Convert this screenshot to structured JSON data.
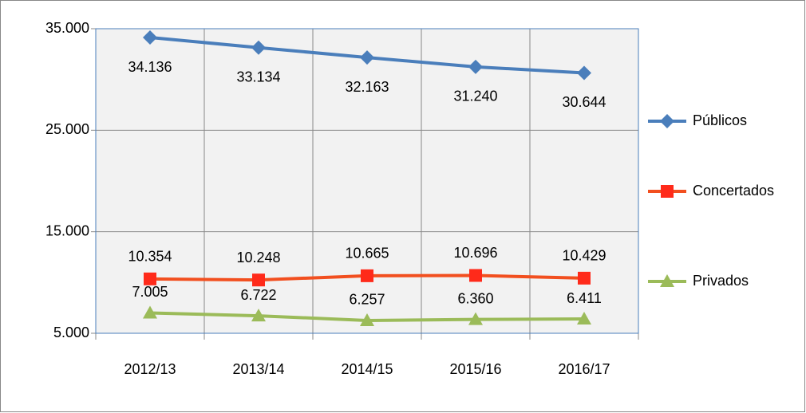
{
  "chart_data": {
    "type": "line",
    "categories": [
      "2012/13",
      "2013/14",
      "2014/15",
      "2015/16",
      "2016/17"
    ],
    "series": [
      {
        "name": "Públicos",
        "color": "#4a7ebb",
        "marker": "diamond",
        "values": [
          34136,
          33134,
          32163,
          31240,
          30644
        ],
        "value_labels": [
          "34.136",
          "33.134",
          "32.163",
          "31.240",
          "30.644"
        ]
      },
      {
        "name": "Concertados",
        "color": "#f24f1f",
        "marker": "square",
        "values": [
          10354,
          10248,
          10665,
          10696,
          10429
        ],
        "value_labels": [
          "10.354",
          "10.248",
          "10.665",
          "10.696",
          "10.429"
        ]
      },
      {
        "name": "Privados",
        "color": "#9bbb59",
        "marker": "triangle",
        "values": [
          7005,
          6722,
          6257,
          6360,
          6411
        ],
        "value_labels": [
          "7.005",
          "6.722",
          "6.257",
          "6.360",
          "6.411"
        ]
      }
    ],
    "ylim": [
      5000,
      35000
    ],
    "yticks": [
      {
        "value": 5000,
        "label": "5.000"
      },
      {
        "value": 15000,
        "label": "15.000"
      },
      {
        "value": 25000,
        "label": "25.000"
      },
      {
        "value": 35000,
        "label": "35.000"
      }
    ],
    "grid": true,
    "legend": "right"
  }
}
